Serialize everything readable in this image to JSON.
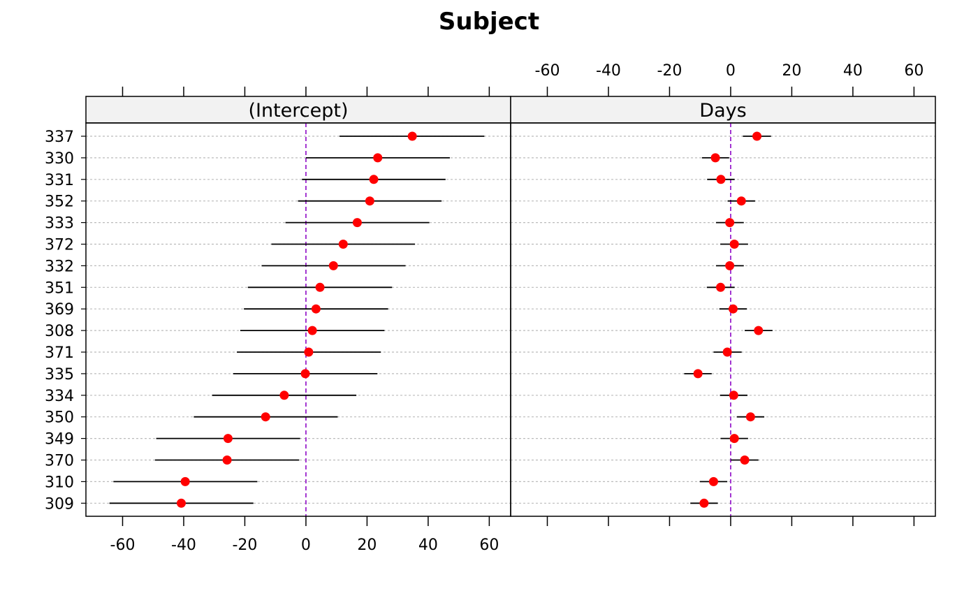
{
  "chart_data": {
    "type": "dotplot",
    "title": "Subject",
    "xlim": [
      -72,
      67
    ],
    "ticks": [
      -60,
      -40,
      -20,
      0,
      20,
      40,
      60
    ],
    "tick_labels": [
      "-60",
      "-40",
      "-20",
      "0",
      "20",
      "40",
      "60"
    ],
    "reference_line": 0,
    "subjects": [
      "337",
      "330",
      "331",
      "352",
      "333",
      "372",
      "332",
      "351",
      "369",
      "308",
      "371",
      "335",
      "334",
      "350",
      "349",
      "370",
      "310",
      "309"
    ],
    "panels": [
      {
        "label": "(Intercept)",
        "points": [
          34.8,
          23.5,
          22.2,
          20.9,
          16.8,
          12.2,
          9.0,
          4.6,
          3.3,
          2.1,
          0.9,
          -0.2,
          -7.1,
          -13.2,
          -25.5,
          -25.8,
          -39.5,
          -40.8
        ],
        "lower": [
          11.0,
          0.0,
          -1.3,
          -2.6,
          -6.7,
          -11.3,
          -14.5,
          -19.0,
          -20.3,
          -21.5,
          -22.6,
          -23.8,
          -30.7,
          -36.7,
          -49.0,
          -49.4,
          -63.0,
          -64.3
        ],
        "upper": [
          58.4,
          47.1,
          45.7,
          44.4,
          40.4,
          35.7,
          32.6,
          28.2,
          26.9,
          25.7,
          24.5,
          23.4,
          16.5,
          10.4,
          -1.9,
          -2.2,
          -15.9,
          -17.2
        ]
      },
      {
        "label": "Days",
        "points": [
          8.6,
          -5.0,
          -3.2,
          3.5,
          -0.3,
          1.2,
          -0.3,
          -3.3,
          0.8,
          9.1,
          -1.1,
          -10.7,
          1.0,
          6.5,
          1.2,
          4.6,
          -5.6,
          -8.7
        ],
        "lower": [
          4.0,
          -9.4,
          -7.7,
          -1.0,
          -4.8,
          -3.4,
          -4.8,
          -7.8,
          -3.7,
          4.6,
          -5.6,
          -15.2,
          -3.5,
          2.0,
          -3.3,
          0.0,
          -10.1,
          -13.2
        ],
        "upper": [
          13.2,
          -0.5,
          1.3,
          8.0,
          4.3,
          5.7,
          4.3,
          1.3,
          5.3,
          13.7,
          3.6,
          -6.2,
          5.5,
          11.0,
          5.7,
          9.1,
          -1.1,
          -4.2
        ]
      }
    ],
    "colors": {
      "point": "#ff0000",
      "reference": "#9a22cc",
      "gridline": "#bbbbbb",
      "strip": "#f2f2f2"
    }
  }
}
